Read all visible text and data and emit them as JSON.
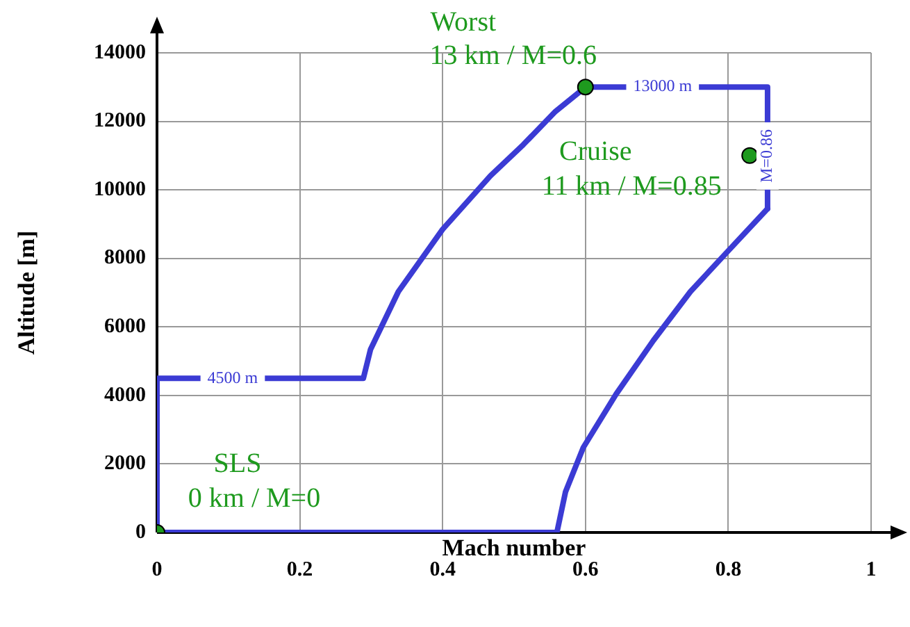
{
  "chart_data": {
    "type": "line",
    "xlabel": "Mach number",
    "ylabel": "Altitude [m]",
    "xlim": [
      0,
      1
    ],
    "xticks": [
      0,
      0.2,
      0.4,
      0.6,
      0.8,
      1
    ],
    "ylim": [
      0,
      14000
    ],
    "yticks": [
      0,
      2000,
      4000,
      6000,
      8000,
      10000,
      12000,
      14000
    ],
    "grid": true,
    "legend": false,
    "series": [
      {
        "type": "line",
        "color": "#3b3bd4",
        "marker": "none",
        "x": [
          0,
          0,
          0.289,
          0.299,
          0.338,
          0.4,
          0.467,
          0.513,
          0.558,
          0.6,
          0.855,
          0.855
        ],
        "values": [
          0,
          4500,
          4500,
          5340,
          7030,
          8850,
          10410,
          11320,
          12290,
          13000,
          13000,
          9450
        ]
      },
      {
        "type": "line",
        "color": "#3b3bd4",
        "marker": "none",
        "x": [
          0,
          0.56,
          0.572,
          0.597,
          0.643,
          0.695,
          0.747,
          0.799,
          0.855
        ],
        "values": [
          0,
          0,
          1180,
          2480,
          4040,
          5600,
          7030,
          8200,
          9450
        ]
      },
      {
        "type": "scatter",
        "color": "#1e9a1e",
        "marker": "circle",
        "x": [
          0,
          0.6,
          0.83
        ],
        "values": [
          0,
          13000,
          11000
        ]
      }
    ],
    "annotations": [
      "4500 m",
      "13000 m",
      "M=0.86",
      {
        "text": "Worst\n13 km / M=0.6",
        "x": 0.6,
        "y": 13000
      },
      {
        "text": "Cruise\n11 km / M=0.85",
        "x": 0.83,
        "y": 11000
      },
      {
        "text": "SLS\n0 km / M=0",
        "x": 0,
        "y": 0
      }
    ]
  }
}
